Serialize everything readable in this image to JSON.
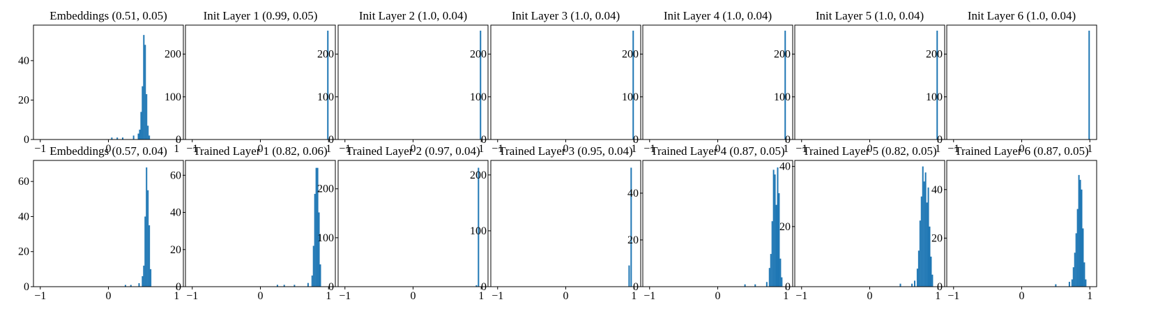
{
  "figure": {
    "bar_color": "#1f77b4",
    "axis_color": "#000000",
    "background": "#ffffff"
  },
  "chart_data": [
    {
      "type": "bar",
      "title": "Embeddings (0.51, 0.05)",
      "xlim": [
        -1.1,
        1.1
      ],
      "ylim": [
        0,
        58
      ],
      "xticks": [
        -1,
        0,
        1
      ],
      "yticks": [
        0,
        20,
        40
      ],
      "bins": [
        {
          "x": 0.05,
          "y": 1
        },
        {
          "x": 0.13,
          "y": 1
        },
        {
          "x": 0.21,
          "y": 1
        },
        {
          "x": 0.37,
          "y": 2
        },
        {
          "x": 0.44,
          "y": 3
        },
        {
          "x": 0.46,
          "y": 5
        },
        {
          "x": 0.48,
          "y": 14
        },
        {
          "x": 0.5,
          "y": 27
        },
        {
          "x": 0.52,
          "y": 53
        },
        {
          "x": 0.54,
          "y": 48
        },
        {
          "x": 0.56,
          "y": 23
        },
        {
          "x": 0.58,
          "y": 7
        },
        {
          "x": 0.6,
          "y": 2
        }
      ]
    },
    {
      "type": "bar",
      "title": "Init Layer 1 (0.99, 0.05)",
      "xlim": [
        -1.1,
        1.1
      ],
      "ylim": [
        0,
        268
      ],
      "xticks": [
        -1,
        0,
        1
      ],
      "yticks": [
        0,
        100,
        200
      ],
      "bins": [
        {
          "x": 0.99,
          "y": 255
        }
      ]
    },
    {
      "type": "bar",
      "title": "Init Layer 2 (1.0, 0.04)",
      "xlim": [
        -1.1,
        1.1
      ],
      "ylim": [
        0,
        268
      ],
      "xticks": [
        -1,
        0,
        1
      ],
      "yticks": [
        0,
        100,
        200
      ],
      "bins": [
        {
          "x": 0.99,
          "y": 255
        }
      ]
    },
    {
      "type": "bar",
      "title": "Init Layer 3 (1.0, 0.04)",
      "xlim": [
        -1.1,
        1.1
      ],
      "ylim": [
        0,
        268
      ],
      "xticks": [
        -1,
        0,
        1
      ],
      "yticks": [
        0,
        100,
        200
      ],
      "bins": [
        {
          "x": 0.99,
          "y": 255
        }
      ]
    },
    {
      "type": "bar",
      "title": "Init Layer 4 (1.0, 0.04)",
      "xlim": [
        -1.1,
        1.1
      ],
      "ylim": [
        0,
        268
      ],
      "xticks": [
        -1,
        0,
        1
      ],
      "yticks": [
        0,
        100,
        200
      ],
      "bins": [
        {
          "x": 0.99,
          "y": 255
        }
      ]
    },
    {
      "type": "bar",
      "title": "Init Layer 5 (1.0, 0.04)",
      "xlim": [
        -1.1,
        1.1
      ],
      "ylim": [
        0,
        268
      ],
      "xticks": [
        -1,
        0,
        1
      ],
      "yticks": [
        0,
        100,
        200
      ],
      "bins": [
        {
          "x": 0.99,
          "y": 255
        }
      ]
    },
    {
      "type": "bar",
      "title": "Init Layer 6 (1.0, 0.04)",
      "xlim": [
        -1.1,
        1.1
      ],
      "ylim": [
        0,
        268
      ],
      "xticks": [
        -1,
        0,
        1
      ],
      "yticks": [
        0,
        100,
        200
      ],
      "bins": [
        {
          "x": 0.99,
          "y": 255
        }
      ]
    },
    {
      "type": "bar",
      "title": "Embeddings (0.57, 0.04)",
      "xlim": [
        -1.1,
        1.1
      ],
      "ylim": [
        0,
        72
      ],
      "xticks": [
        -1,
        0,
        1
      ],
      "yticks": [
        0,
        20,
        40,
        60
      ],
      "bins": [
        {
          "x": 0.25,
          "y": 1
        },
        {
          "x": 0.33,
          "y": 1
        },
        {
          "x": 0.45,
          "y": 2
        },
        {
          "x": 0.5,
          "y": 6
        },
        {
          "x": 0.52,
          "y": 12
        },
        {
          "x": 0.54,
          "y": 40
        },
        {
          "x": 0.56,
          "y": 68
        },
        {
          "x": 0.58,
          "y": 55
        },
        {
          "x": 0.6,
          "y": 35
        },
        {
          "x": 0.62,
          "y": 10
        }
      ]
    },
    {
      "type": "bar",
      "title": "Trained Layer 1 (0.82, 0.06)",
      "xlim": [
        -1.1,
        1.1
      ],
      "ylim": [
        0,
        68
      ],
      "xticks": [
        -1,
        0,
        1
      ],
      "yticks": [
        0,
        20,
        40,
        60
      ],
      "bins": [
        {
          "x": 0.25,
          "y": 1
        },
        {
          "x": 0.35,
          "y": 1
        },
        {
          "x": 0.5,
          "y": 1
        },
        {
          "x": 0.7,
          "y": 2
        },
        {
          "x": 0.76,
          "y": 6
        },
        {
          "x": 0.78,
          "y": 22
        },
        {
          "x": 0.8,
          "y": 50
        },
        {
          "x": 0.82,
          "y": 64
        },
        {
          "x": 0.84,
          "y": 64
        },
        {
          "x": 0.86,
          "y": 40
        },
        {
          "x": 0.88,
          "y": 12
        }
      ]
    },
    {
      "type": "bar",
      "title": "Trained Layer 2 (0.97, 0.04)",
      "xlim": [
        -1.1,
        1.1
      ],
      "ylim": [
        0,
        258
      ],
      "xticks": [
        -1,
        0,
        1
      ],
      "yticks": [
        0,
        100,
        200
      ],
      "bins": [
        {
          "x": 0.93,
          "y": 3
        },
        {
          "x": 0.96,
          "y": 243
        }
      ]
    },
    {
      "type": "bar",
      "title": "Trained Layer 3 (0.95, 0.04)",
      "xlim": [
        -1.1,
        1.1
      ],
      "ylim": [
        0,
        226
      ],
      "xticks": [
        -1,
        0,
        1
      ],
      "yticks": [
        0,
        100,
        200
      ],
      "bins": [
        {
          "x": 0.93,
          "y": 38
        },
        {
          "x": 0.96,
          "y": 213
        }
      ]
    },
    {
      "type": "bar",
      "title": "Trained Layer 4 (0.87, 0.05)",
      "xlim": [
        -1.1,
        1.1
      ],
      "ylim": [
        0,
        54
      ],
      "xticks": [
        -1,
        0,
        1
      ],
      "yticks": [
        0,
        20,
        40
      ],
      "bins": [
        {
          "x": 0.4,
          "y": 1
        },
        {
          "x": 0.55,
          "y": 1
        },
        {
          "x": 0.72,
          "y": 2
        },
        {
          "x": 0.76,
          "y": 8
        },
        {
          "x": 0.78,
          "y": 14
        },
        {
          "x": 0.8,
          "y": 28
        },
        {
          "x": 0.82,
          "y": 50
        },
        {
          "x": 0.84,
          "y": 48
        },
        {
          "x": 0.86,
          "y": 35
        },
        {
          "x": 0.88,
          "y": 51
        },
        {
          "x": 0.9,
          "y": 40
        },
        {
          "x": 0.92,
          "y": 12
        },
        {
          "x": 0.94,
          "y": 4
        }
      ]
    },
    {
      "type": "bar",
      "title": "Trained Layer 5 (0.82, 0.05)",
      "xlim": [
        -1.1,
        1.1
      ],
      "ylim": [
        0,
        42
      ],
      "xticks": [
        -1,
        0,
        1
      ],
      "yticks": [
        0,
        20,
        40
      ],
      "bins": [
        {
          "x": 0.45,
          "y": 1
        },
        {
          "x": 0.62,
          "y": 1
        },
        {
          "x": 0.66,
          "y": 2
        },
        {
          "x": 0.7,
          "y": 6
        },
        {
          "x": 0.72,
          "y": 12
        },
        {
          "x": 0.74,
          "y": 22
        },
        {
          "x": 0.76,
          "y": 30
        },
        {
          "x": 0.78,
          "y": 40
        },
        {
          "x": 0.8,
          "y": 35
        },
        {
          "x": 0.82,
          "y": 38
        },
        {
          "x": 0.84,
          "y": 28
        },
        {
          "x": 0.86,
          "y": 33
        },
        {
          "x": 0.88,
          "y": 20
        },
        {
          "x": 0.9,
          "y": 10
        },
        {
          "x": 0.92,
          "y": 4
        }
      ]
    },
    {
      "type": "bar",
      "title": "Trained Layer 6 (0.87, 0.05)",
      "xlim": [
        -1.1,
        1.1
      ],
      "ylim": [
        0,
        52
      ],
      "xticks": [
        -1,
        0,
        1
      ],
      "yticks": [
        0,
        20,
        40
      ],
      "bins": [
        {
          "x": 0.5,
          "y": 1
        },
        {
          "x": 0.7,
          "y": 2
        },
        {
          "x": 0.74,
          "y": 3
        },
        {
          "x": 0.76,
          "y": 8
        },
        {
          "x": 0.78,
          "y": 14
        },
        {
          "x": 0.8,
          "y": 22
        },
        {
          "x": 0.82,
          "y": 32
        },
        {
          "x": 0.84,
          "y": 46
        },
        {
          "x": 0.86,
          "y": 44
        },
        {
          "x": 0.88,
          "y": 40
        },
        {
          "x": 0.9,
          "y": 24
        },
        {
          "x": 0.92,
          "y": 10
        },
        {
          "x": 0.94,
          "y": 3
        }
      ]
    }
  ]
}
